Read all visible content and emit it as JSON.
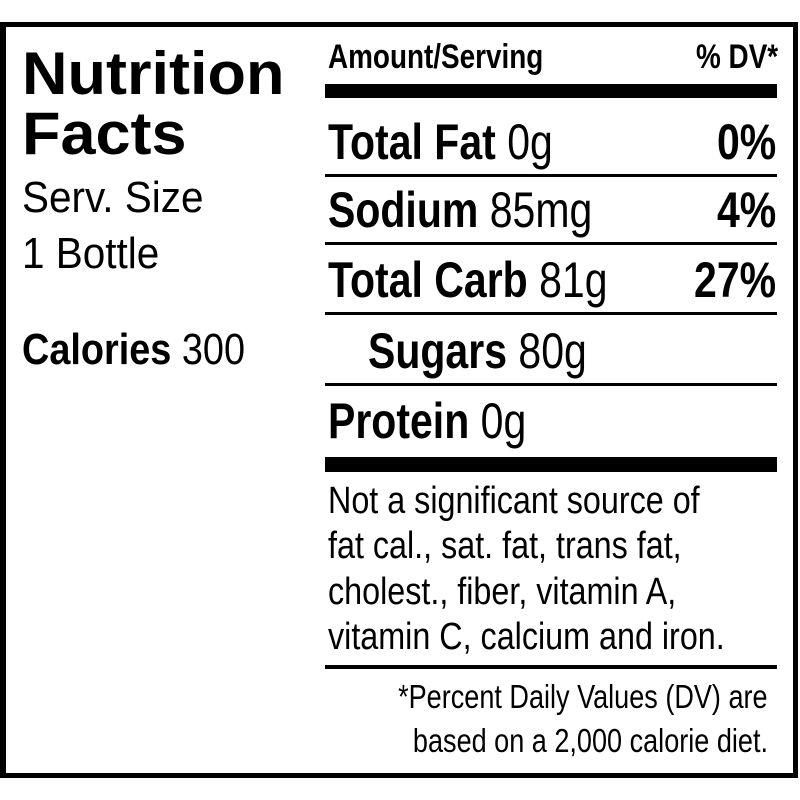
{
  "title_line1": "Nutrition",
  "title_line2": "Facts",
  "serving_label": "Serv. Size",
  "serving_value": "1 Bottle",
  "calories_label": "Calories",
  "calories_value": "300",
  "header": {
    "amount": "Amount/Serving",
    "dv": "% DV*"
  },
  "nutrients": [
    {
      "name": "Total Fat",
      "amount": "0g",
      "dv": "0%"
    },
    {
      "name": "Sodium",
      "amount": "85mg",
      "dv": "4%"
    },
    {
      "name": "Total Carb",
      "amount": "81g",
      "dv": "27%"
    },
    {
      "name": "Sugars",
      "amount": "80g",
      "dv": ""
    },
    {
      "name": "Protein",
      "amount": "0g",
      "dv": ""
    }
  ],
  "note_lines": [
    "Not a significant source of",
    "fat cal., sat. fat, trans fat,",
    "cholest., fiber, vitamin A,",
    "vitamin C, calcium and iron."
  ],
  "footnote_lines": [
    "*Percent Daily Values (DV) are",
    "based on a 2,000 calorie diet."
  ]
}
